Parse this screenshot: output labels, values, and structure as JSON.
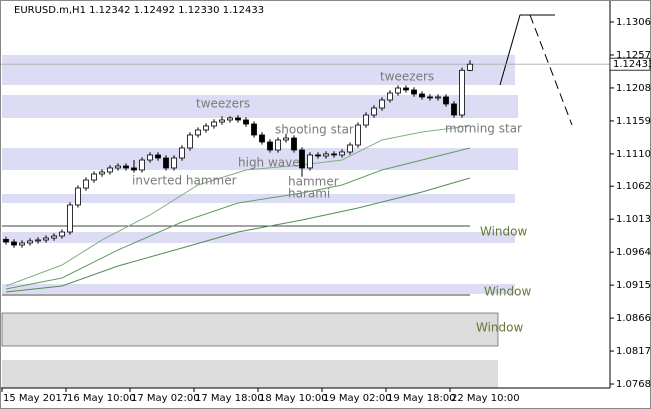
{
  "chart_data": {
    "type": "candlestick",
    "header": "EURUSD.m,H1  1.12342 1.12492 1.12330 1.12433",
    "open": [
      1.0983,
      1.09791,
      1.09746,
      1.09776,
      1.09806,
      1.09821,
      1.0985,
      1.0988,
      1.09939,
      1.10341,
      1.10593,
      1.10712,
      1.10801,
      1.10831,
      1.10891,
      1.1092,
      1.10891,
      1.10861,
      1.11009,
      1.11084,
      1.11039,
      1.10891,
      1.11039,
      1.11188,
      1.11381,
      1.11455,
      1.11515,
      1.11574,
      1.11604,
      1.11634,
      1.11604,
      1.11544,
      1.11381,
      1.11277,
      1.11158,
      1.11307,
      1.11336,
      1.11158,
      1.10891,
      1.11084,
      1.11069,
      1.11099,
      1.11084,
      1.11128,
      1.11232,
      1.11529,
      1.11678,
      1.11782,
      1.11901,
      1.12005,
      1.12079,
      1.1205,
      1.1199,
      1.11946,
      1.11931,
      1.11946,
      1.11842,
      1.11678,
      1.12342
    ],
    "high": [
      1.0987,
      1.09831,
      1.09816,
      1.09846,
      1.09861,
      1.0989,
      1.0992,
      1.09979,
      1.10381,
      1.10633,
      1.10752,
      1.10841,
      1.10871,
      1.10931,
      1.1096,
      1.1096,
      1.1101,
      1.11049,
      1.11124,
      1.11124,
      1.11079,
      1.11079,
      1.11228,
      1.11421,
      1.11495,
      1.11555,
      1.11614,
      1.1166,
      1.1166,
      1.11674,
      1.11644,
      1.11584,
      1.11421,
      1.11317,
      1.11347,
      1.114,
      1.11376,
      1.11198,
      1.11124,
      1.11124,
      1.11139,
      1.11139,
      1.11168,
      1.11272,
      1.11569,
      1.11718,
      1.11822,
      1.11941,
      1.12045,
      1.12119,
      1.12119,
      1.1209,
      1.1203,
      1.11986,
      1.11986,
      1.11986,
      1.11882,
      1.12382,
      1.12492
    ],
    "low": [
      1.09751,
      1.09706,
      1.09706,
      1.09736,
      1.09766,
      1.09781,
      1.0981,
      1.0984,
      1.09899,
      1.10301,
      1.10553,
      1.10672,
      1.10761,
      1.10791,
      1.10851,
      1.10851,
      1.10821,
      1.10821,
      1.10969,
      1.10999,
      1.10851,
      1.10851,
      1.10999,
      1.11148,
      1.11341,
      1.11415,
      1.11475,
      1.11534,
      1.11564,
      1.11564,
      1.11504,
      1.11341,
      1.11237,
      1.11118,
      1.11118,
      1.11267,
      1.11118,
      1.1076,
      1.10851,
      1.11029,
      1.11029,
      1.11044,
      1.11044,
      1.11088,
      1.11192,
      1.11489,
      1.11638,
      1.11742,
      1.11861,
      1.11965,
      1.1201,
      1.1195,
      1.11906,
      1.11891,
      1.11891,
      1.11802,
      1.11638,
      1.11638,
      1.1233
    ],
    "close": [
      1.09791,
      1.09746,
      1.09776,
      1.09806,
      1.09821,
      1.0985,
      1.0988,
      1.09939,
      1.10341,
      1.10593,
      1.10712,
      1.10801,
      1.10831,
      1.10891,
      1.1092,
      1.10891,
      1.10861,
      1.11009,
      1.11084,
      1.11039,
      1.10891,
      1.11039,
      1.11188,
      1.11381,
      1.11455,
      1.11515,
      1.11574,
      1.11604,
      1.11634,
      1.11604,
      1.11544,
      1.11381,
      1.11277,
      1.11158,
      1.11307,
      1.11336,
      1.11158,
      1.10891,
      1.11084,
      1.11069,
      1.11099,
      1.11084,
      1.11128,
      1.11232,
      1.11529,
      1.11678,
      1.11782,
      1.11901,
      1.12005,
      1.12079,
      1.1205,
      1.1199,
      1.11946,
      1.11931,
      1.11946,
      1.11842,
      1.11678,
      1.12342,
      1.12433
    ],
    "color_up": "#ffffff",
    "color_down": "#000000",
    "lines": [
      {
        "color": "#7fb27f",
        "x": [
          0,
          7,
          12,
          18,
          24,
          30,
          37,
          42,
          47,
          52,
          56,
          58
        ],
        "values": [
          1.09137,
          1.09449,
          1.09821,
          1.10192,
          1.10638,
          1.10861,
          1.10935,
          1.11009,
          1.11307,
          1.11425,
          1.11485,
          1.11529
        ]
      },
      {
        "color": "#5f9f5f",
        "x": [
          0,
          7,
          14,
          22,
          29,
          37,
          42,
          47,
          52,
          58
        ],
        "values": [
          1.09092,
          1.09256,
          1.09672,
          1.10088,
          1.1037,
          1.10519,
          1.10638,
          1.10861,
          1.11009,
          1.11188
        ]
      },
      {
        "color": "#4f8f4f",
        "x": [
          0,
          7,
          14,
          22,
          29,
          37,
          44,
          52,
          58
        ],
        "values": [
          1.09048,
          1.09137,
          1.09434,
          1.09702,
          1.09939,
          1.10118,
          1.10296,
          1.10534,
          1.10742
        ]
      }
    ],
    "xlim": [
      0,
      76
    ],
    "xticks": [
      {
        "value": 0,
        "label": "15 May 2017"
      },
      {
        "value": 8,
        "label": "16 May 10:00"
      },
      {
        "value": 16,
        "label": "17 May 02:00"
      },
      {
        "value": 24,
        "label": "17 May 18:00"
      },
      {
        "value": 32,
        "label": "18 May 10:00"
      },
      {
        "value": 40,
        "label": "19 May 02:00"
      },
      {
        "value": 48,
        "label": "19 May 18:00"
      },
      {
        "value": 56,
        "label": "22 May 10:00"
      }
    ],
    "ylim": [
      1.07621,
      1.13387
    ],
    "yticks": [
      {
        "value": 1.1306,
        "label": "1.13060"
      },
      {
        "value": 1.1257,
        "label": "1.12570"
      },
      {
        "value": 1.1208,
        "label": "1.12080"
      },
      {
        "value": 1.1159,
        "label": "1.11590"
      },
      {
        "value": 1.111,
        "label": "1.11100"
      },
      {
        "value": 1.1062,
        "label": "1.10620"
      },
      {
        "value": 1.1013,
        "label": "1.10130"
      },
      {
        "value": 1.0964,
        "label": "1.09640"
      },
      {
        "value": 1.0915,
        "label": "1.09150"
      },
      {
        "value": 1.0866,
        "label": "1.08660"
      },
      {
        "value": 1.0817,
        "label": "1.08170"
      },
      {
        "value": 1.0768,
        "label": "1.07680"
      }
    ],
    "annotations": [
      "tweezers",
      "inverted hammer",
      "shooting star",
      "high wave",
      "hammer",
      "harami",
      "tweezers",
      "morning star",
      "Window",
      "Window",
      "Window"
    ]
  }
}
